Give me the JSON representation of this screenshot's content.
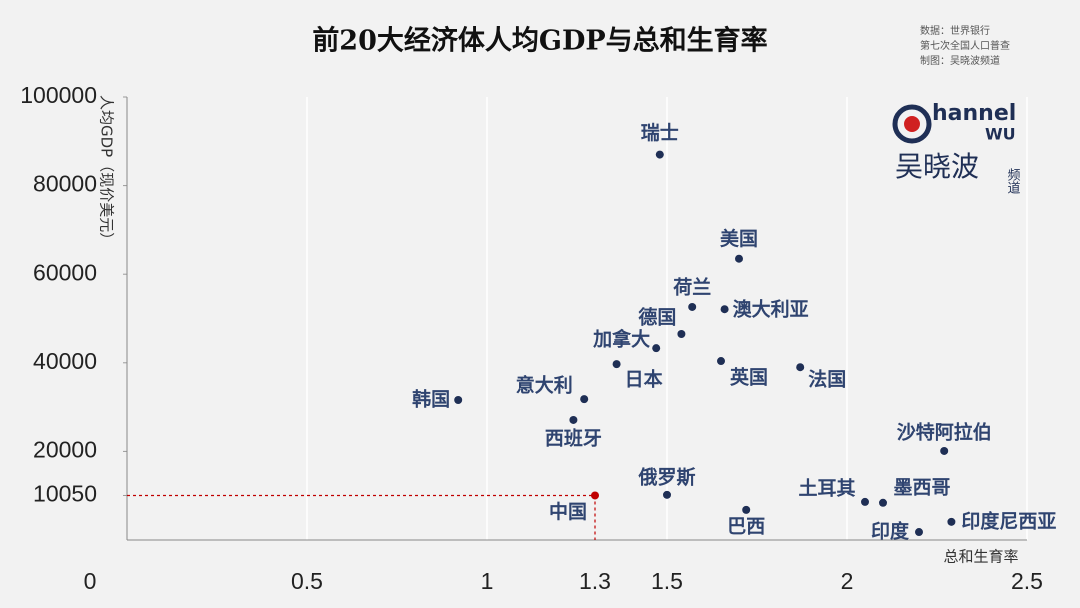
{
  "chart_data": {
    "type": "scatter",
    "title": "前20大经济体人均GDP与总和生育率",
    "source_lines": [
      "数据：世界银行",
      "第七次全国人口普查",
      "制图：吴晓波频道"
    ],
    "logo": {
      "line1": "hannel",
      "line2": "WU",
      "name": "吴晓波",
      "suffix": "频道"
    },
    "x_label": "总和生育率",
    "y_label": "人均GDP（现价美元）",
    "point_labels": [
      "瑞士",
      "美国",
      "荷兰",
      "澳大利亚",
      "德国",
      "加拿大",
      "日本",
      "英国",
      "法国",
      "意大利",
      "韩国",
      "西班牙",
      "沙特阿拉伯",
      "中国",
      "俄罗斯",
      "巴西",
      "土耳其",
      "墨西哥",
      "印度",
      "印度尼西亚"
    ],
    "x": [
      1.48,
      1.7,
      1.57,
      1.66,
      1.54,
      1.47,
      1.36,
      1.65,
      1.87,
      1.27,
      0.92,
      1.24,
      2.27,
      1.3,
      1.5,
      1.72,
      2.05,
      2.1,
      2.2,
      2.29
    ],
    "values": [
      87000,
      63500,
      52600,
      52100,
      46500,
      43300,
      39700,
      40400,
      39000,
      31800,
      31600,
      27100,
      20100,
      10050,
      10200,
      6800,
      8600,
      8400,
      1800,
      4100
    ],
    "color": "#1f2f55",
    "highlight": {
      "index": 13,
      "color": "#c00000"
    },
    "xlim": [
      0,
      2.5
    ],
    "ylim": [
      0,
      100000
    ],
    "xticks": [
      0,
      0.5,
      1,
      1.3,
      1.5,
      2,
      2.5
    ],
    "yticks": [
      10050,
      20000,
      40000,
      60000,
      80000,
      100000
    ],
    "grid": true
  }
}
